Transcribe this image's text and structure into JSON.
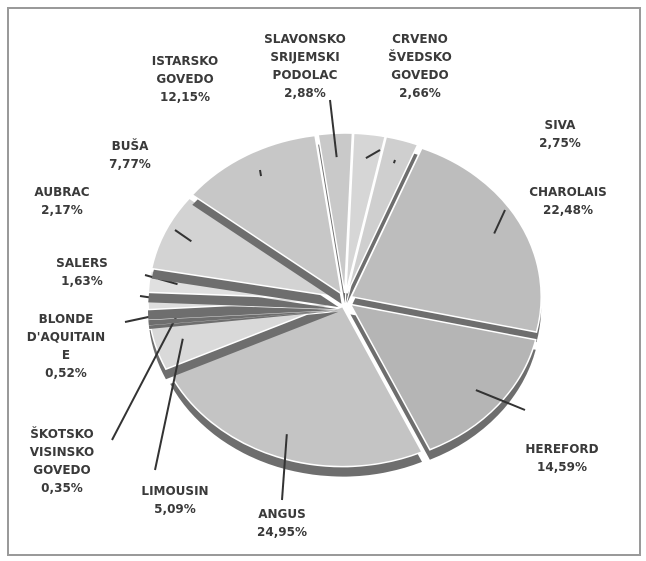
{
  "chart_data": {
    "type": "pie",
    "categories": [
      "SLAVONSKO\nSRIJEMSKI\nPODOLAC",
      "CRVENO\nŠVEDSKO\nGOVEDO",
      "SIVA",
      "CHAROLAIS",
      "HEREFORD",
      "ANGUS",
      "LIMOUSIN",
      "ŠKOTSKO\nVISINSKO\nGOVEDO",
      "BLONDE\nD'AQUITAIN\nE",
      "SALERS",
      "AUBRAC",
      "BUŠA",
      "ISTARSKO\nGOVEDO"
    ],
    "values": [
      2.88,
      2.66,
      2.75,
      22.48,
      14.59,
      24.95,
      5.09,
      0.35,
      0.52,
      1.63,
      2.17,
      7.77,
      12.15
    ],
    "value_labels": [
      "2,88%",
      "2,66%",
      "2,75%",
      "22,48%",
      "14,59%",
      "24,95%",
      "5,09%",
      "0,35%",
      "0,52%",
      "1,63%",
      "2,17%",
      "7,77%",
      "12,15%"
    ],
    "colors": [
      "#c9c9c9",
      "#d6d6d6",
      "#cfcfcf",
      "#bdbdbd",
      "#b5b5b5",
      "#c4c4c4",
      "#d9d9d9",
      "#e3e3e3",
      "#e6e6e6",
      "#dedede",
      "#e0e0e0",
      "#d3d3d3",
      "#c7c7c7"
    ]
  }
}
